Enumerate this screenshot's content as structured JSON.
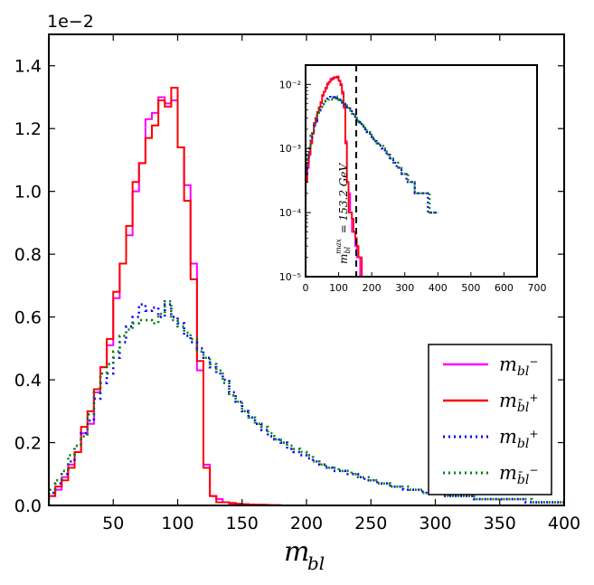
{
  "chart_data": {
    "type": "line",
    "xlabel": "m_bl",
    "xlim": [
      0,
      400
    ],
    "ylim": [
      0,
      0.015
    ],
    "x_ticks": [
      "50",
      "100",
      "150",
      "200",
      "250",
      "300",
      "350",
      "400"
    ],
    "y_ticks": [
      "0.0",
      "0.2",
      "0.4",
      "0.6",
      "0.8",
      "1.0",
      "1.2",
      "1.4"
    ],
    "y_scale_label": "1e−2",
    "legend": [
      "m_bl⁻",
      "m_b̄l⁺",
      "m_bl⁺",
      "m_b̄l⁻"
    ],
    "bin_width": 5,
    "series": [
      {
        "name": "m_bl⁻",
        "color": "#ff00ff",
        "style": "solid",
        "values": [
          0.0003,
          0.0005,
          0.0009,
          0.0013,
          0.0017,
          0.0023,
          0.0026,
          0.0036,
          0.0044,
          0.0051,
          0.0066,
          0.0077,
          0.0086,
          0.01,
          0.0109,
          0.0123,
          0.0125,
          0.013,
          0.0128,
          0.0129,
          0.0114,
          0.0102,
          0.0077,
          0.0043,
          0.0013,
          0.0003,
          0.0002,
          0.0001,
          5e-05,
          5e-05,
          3e-05,
          2e-05,
          2e-05,
          1e-05,
          1e-05,
          0,
          0,
          0,
          0,
          0,
          0,
          0,
          0,
          0,
          0,
          0,
          0,
          0,
          0,
          0,
          0,
          0,
          0,
          0,
          0,
          0,
          0,
          0,
          0,
          0,
          0,
          0,
          0,
          0,
          0,
          0,
          0,
          0,
          0,
          0,
          0,
          0,
          0,
          0,
          0,
          0,
          0,
          0,
          0,
          0
        ]
      },
      {
        "name": "m_b̄l⁺",
        "color": "#ff0000",
        "style": "solid",
        "values": [
          0.0003,
          0.0006,
          0.0008,
          0.0012,
          0.0017,
          0.0025,
          0.003,
          0.0037,
          0.0044,
          0.0053,
          0.0068,
          0.0077,
          0.0089,
          0.0103,
          0.0109,
          0.0117,
          0.0121,
          0.0129,
          0.0127,
          0.0133,
          0.0114,
          0.0097,
          0.0072,
          0.0046,
          0.0012,
          0.0003,
          0.0001,
          0.0001,
          8e-05,
          5e-05,
          4e-05,
          3e-05,
          2e-05,
          2e-05,
          1e-05,
          1e-05,
          0,
          0,
          0,
          0,
          0,
          0,
          0,
          0,
          0,
          0,
          0,
          0,
          0,
          0,
          0,
          0,
          0,
          0,
          0,
          0,
          0,
          0,
          0,
          0,
          0,
          0,
          0,
          0,
          0,
          0,
          0,
          0,
          0,
          0,
          0,
          0,
          0,
          0,
          0,
          0,
          0,
          0,
          0,
          0
        ]
      },
      {
        "name": "m_bl⁺",
        "color": "#0000ff",
        "style": "dotted",
        "values": [
          0.0004,
          0.0007,
          0.001,
          0.0014,
          0.0019,
          0.0023,
          0.0027,
          0.0034,
          0.0039,
          0.0042,
          0.0047,
          0.0052,
          0.0057,
          0.006,
          0.0064,
          0.0062,
          0.0063,
          0.006,
          0.0064,
          0.006,
          0.0058,
          0.0054,
          0.0052,
          0.005,
          0.0047,
          0.0044,
          0.0042,
          0.004,
          0.0036,
          0.0033,
          0.003,
          0.0028,
          0.0026,
          0.0024,
          0.0022,
          0.0021,
          0.002,
          0.0018,
          0.0017,
          0.0016,
          0.0015,
          0.0014,
          0.0013,
          0.0012,
          0.0011,
          0.0011,
          0.001,
          0.001,
          0.0009,
          0.0008,
          0.0008,
          0.0007,
          0.0007,
          0.0006,
          0.0006,
          0.0005,
          0.0005,
          0.0005,
          0.0004,
          0.0004,
          0.0004,
          0.0003,
          0.0003,
          0.0003,
          0.0003,
          0.0003,
          0.0002,
          0.0002,
          0.0002,
          0.0002,
          0.0002,
          0.0002,
          0.0002,
          0.0002,
          0.0001,
          0.0001,
          0.0001,
          0.0001,
          0.0001,
          0.0001
        ]
      },
      {
        "name": "m_b̄l⁻",
        "color": "#008000",
        "style": "dotted",
        "values": [
          0.0005,
          0.0008,
          0.0011,
          0.0016,
          0.0019,
          0.0022,
          0.0029,
          0.0036,
          0.0042,
          0.0045,
          0.0049,
          0.0054,
          0.0056,
          0.0058,
          0.0059,
          0.0059,
          0.0058,
          0.0061,
          0.0065,
          0.0059,
          0.0057,
          0.0055,
          0.0053,
          0.0049,
          0.0047,
          0.0045,
          0.0043,
          0.0039,
          0.0035,
          0.0033,
          0.003,
          0.0028,
          0.0026,
          0.0025,
          0.0023,
          0.0021,
          0.002,
          0.0019,
          0.0018,
          0.0017,
          0.0016,
          0.0014,
          0.0013,
          0.0012,
          0.0012,
          0.0011,
          0.0011,
          0.001,
          0.0009,
          0.0009,
          0.0008,
          0.0007,
          0.0007,
          0.0006,
          0.0006,
          0.0006,
          0.0005,
          0.0005,
          0.0004,
          0.0004,
          0.0004,
          0.0004,
          0.0003,
          0.0003,
          0.0003,
          0.0003,
          0.0002,
          0.0002,
          0.0002,
          0.0002,
          0.0002,
          0.0002,
          0.0002,
          0.0002,
          0.0002,
          0.0001,
          0.0001,
          0.0001,
          0.0001,
          0.0001
        ]
      }
    ],
    "inset": {
      "type": "line",
      "yscale": "log",
      "xlim": [
        0,
        700
      ],
      "ylim": [
        1e-05,
        0.02
      ],
      "x_ticks": [
        "0",
        "100",
        "200",
        "300",
        "400",
        "500",
        "600",
        "700"
      ],
      "y_ticks": [
        "10⁻⁵",
        "10⁻⁴",
        "10⁻³",
        "10⁻²"
      ],
      "cutoff_value": 153.2,
      "annotation": "m_bl^max = 153.2 GeV"
    }
  }
}
